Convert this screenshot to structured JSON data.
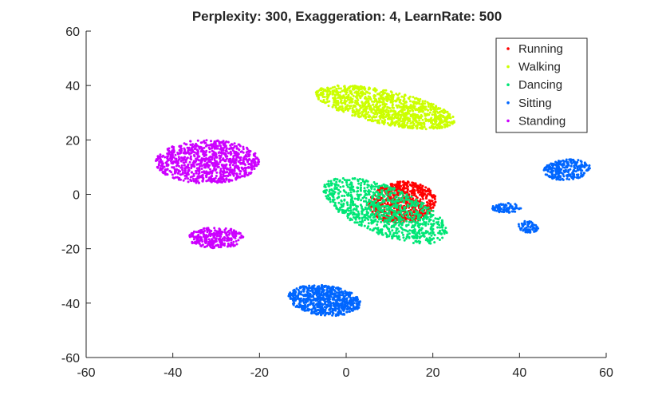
{
  "chart_data": {
    "type": "scatter",
    "title": "Perplexity: 300, Exaggeration: 4, LearnRate: 500",
    "xlabel": "",
    "ylabel": "",
    "xlim": [
      -60,
      60
    ],
    "ylim": [
      -60,
      60
    ],
    "xticks": [
      "-60",
      "-40",
      "-20",
      "0",
      "20",
      "40",
      "60"
    ],
    "yticks": [
      "60",
      "40",
      "20",
      "0",
      "-20",
      "-40",
      "-60"
    ],
    "grid": false,
    "legend_position": "top-right",
    "series": [
      {
        "name": "Running",
        "color": "#ff0000",
        "clusters": [
          {
            "center": [
              13,
              -3
            ],
            "rx": 7.5,
            "ry": 8,
            "angle": -45,
            "count": 700
          }
        ]
      },
      {
        "name": "Walking",
        "color": "#ccff00",
        "clusters": [
          {
            "center": [
              9,
              32
            ],
            "rx": 17,
            "ry": 6,
            "angle": -20,
            "count": 1100
          }
        ]
      },
      {
        "name": "Dancing",
        "color": "#00e676",
        "clusters": [
          {
            "center": [
              9,
              -6
            ],
            "rx": 17,
            "ry": 8,
            "angle": -38,
            "count": 950
          }
        ]
      },
      {
        "name": "Sitting",
        "color": "#0066ff",
        "clusters": [
          {
            "center": [
              -5,
              -39
            ],
            "rx": 8.5,
            "ry": 5.5,
            "angle": -15,
            "count": 700
          },
          {
            "center": [
              51,
              9
            ],
            "rx": 5.5,
            "ry": 3.8,
            "angle": 10,
            "count": 260
          },
          {
            "center": [
              37,
              -5
            ],
            "rx": 3.3,
            "ry": 1.8,
            "angle": 0,
            "count": 90
          },
          {
            "center": [
              42,
              -12
            ],
            "rx": 2.5,
            "ry": 2,
            "angle": -30,
            "count": 70
          }
        ]
      },
      {
        "name": "Standing",
        "color": "#cc00ff",
        "clusters": [
          {
            "center": [
              -32,
              12
            ],
            "rx": 12,
            "ry": 8,
            "angle": 0,
            "count": 900
          },
          {
            "center": [
              -30,
              -16
            ],
            "rx": 6.5,
            "ry": 3.8,
            "angle": 0,
            "count": 280
          }
        ]
      }
    ]
  }
}
